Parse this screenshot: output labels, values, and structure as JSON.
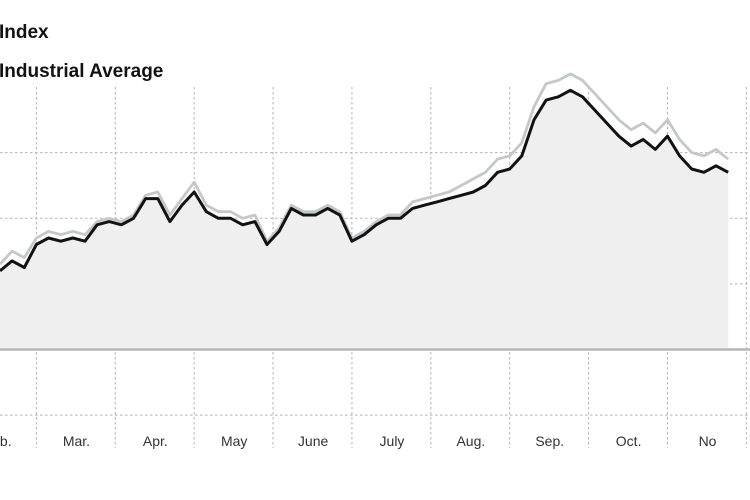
{
  "chart_data": {
    "type": "line",
    "title": "",
    "xlabel": "",
    "ylabel": "",
    "x_ticks": [
      "Feb.",
      "Mar.",
      "Apr.",
      "May",
      "June",
      "July",
      "Aug.",
      "Sep.",
      "Oct.",
      "No"
    ],
    "x_range": [
      0,
      30.9
    ],
    "y_range": [
      -15,
      40
    ],
    "baseline": 0,
    "y_gridlines": [
      -10,
      0,
      10,
      20,
      30
    ],
    "grid": true,
    "legend": "top-left",
    "series": [
      {
        "name": "Index",
        "color": "#c3c8cc",
        "values": [
          [
            0,
            13
          ],
          [
            0.5,
            15
          ],
          [
            1,
            14
          ],
          [
            1.5,
            17
          ],
          [
            2,
            18
          ],
          [
            2.5,
            17.5
          ],
          [
            3,
            18
          ],
          [
            3.5,
            17.5
          ],
          [
            4,
            19.5
          ],
          [
            4.5,
            20
          ],
          [
            5,
            19.5
          ],
          [
            5.5,
            20.5
          ],
          [
            6,
            23.5
          ],
          [
            6.5,
            24
          ],
          [
            7,
            20.5
          ],
          [
            7.5,
            23
          ],
          [
            8,
            25.5
          ],
          [
            8.5,
            22
          ],
          [
            9,
            21
          ],
          [
            9.5,
            21
          ],
          [
            10,
            20
          ],
          [
            10.5,
            20.5
          ],
          [
            11,
            16.5
          ],
          [
            11.5,
            18.5
          ],
          [
            12,
            22
          ],
          [
            12.5,
            21
          ],
          [
            13,
            21
          ],
          [
            13.5,
            22
          ],
          [
            14,
            21
          ],
          [
            14.5,
            17
          ],
          [
            15,
            18
          ],
          [
            15.5,
            19.5
          ],
          [
            16,
            20.5
          ],
          [
            16.5,
            20.5
          ],
          [
            17,
            22.5
          ],
          [
            17.5,
            23
          ],
          [
            18,
            23.5
          ],
          [
            18.5,
            24
          ],
          [
            19,
            25
          ],
          [
            19.5,
            26
          ],
          [
            20,
            27
          ],
          [
            20.5,
            29
          ],
          [
            21,
            29.5
          ],
          [
            21.5,
            31.5
          ],
          [
            22,
            37
          ],
          [
            22.5,
            40.5
          ],
          [
            23,
            41
          ],
          [
            23.5,
            42
          ],
          [
            24,
            41
          ],
          [
            24.5,
            39
          ],
          [
            25,
            37
          ],
          [
            25.5,
            35
          ],
          [
            26,
            33.5
          ],
          [
            26.5,
            34.5
          ],
          [
            27,
            33
          ],
          [
            27.5,
            35
          ],
          [
            28,
            32
          ],
          [
            28.5,
            30
          ],
          [
            29,
            29.5
          ],
          [
            29.5,
            30.5
          ],
          [
            30,
            29
          ]
        ]
      },
      {
        "name": "Industrial Average",
        "color": "#121212",
        "values": [
          [
            0,
            12
          ],
          [
            0.5,
            13.5
          ],
          [
            1,
            12.5
          ],
          [
            1.5,
            16
          ],
          [
            2,
            17
          ],
          [
            2.5,
            16.5
          ],
          [
            3,
            17
          ],
          [
            3.5,
            16.5
          ],
          [
            4,
            19
          ],
          [
            4.5,
            19.5
          ],
          [
            5,
            19
          ],
          [
            5.5,
            20
          ],
          [
            6,
            23
          ],
          [
            6.5,
            23
          ],
          [
            7,
            19.5
          ],
          [
            7.5,
            22
          ],
          [
            8,
            24
          ],
          [
            8.5,
            21
          ],
          [
            9,
            20
          ],
          [
            9.5,
            20
          ],
          [
            10,
            19
          ],
          [
            10.5,
            19.5
          ],
          [
            11,
            16
          ],
          [
            11.5,
            18
          ],
          [
            12,
            21.5
          ],
          [
            12.5,
            20.5
          ],
          [
            13,
            20.5
          ],
          [
            13.5,
            21.5
          ],
          [
            14,
            20.5
          ],
          [
            14.5,
            16.5
          ],
          [
            15,
            17.5
          ],
          [
            15.5,
            19
          ],
          [
            16,
            20
          ],
          [
            16.5,
            20
          ],
          [
            17,
            21.5
          ],
          [
            17.5,
            22
          ],
          [
            18,
            22.5
          ],
          [
            18.5,
            23
          ],
          [
            19,
            23.5
          ],
          [
            19.5,
            24
          ],
          [
            20,
            25
          ],
          [
            20.5,
            27
          ],
          [
            21,
            27.5
          ],
          [
            21.5,
            29.5
          ],
          [
            22,
            35
          ],
          [
            22.5,
            38
          ],
          [
            23,
            38.5
          ],
          [
            23.5,
            39.5
          ],
          [
            24,
            38.5
          ],
          [
            24.5,
            36.5
          ],
          [
            25,
            34.5
          ],
          [
            25.5,
            32.5
          ],
          [
            26,
            31
          ],
          [
            26.5,
            32
          ],
          [
            27,
            30.5
          ],
          [
            27.5,
            32.5
          ],
          [
            28,
            29.5
          ],
          [
            28.5,
            27.5
          ],
          [
            29,
            27
          ],
          [
            29.5,
            28
          ],
          [
            30,
            27
          ]
        ]
      }
    ]
  },
  "legend": {
    "line1": "Index",
    "line2": "Industrial Average"
  }
}
